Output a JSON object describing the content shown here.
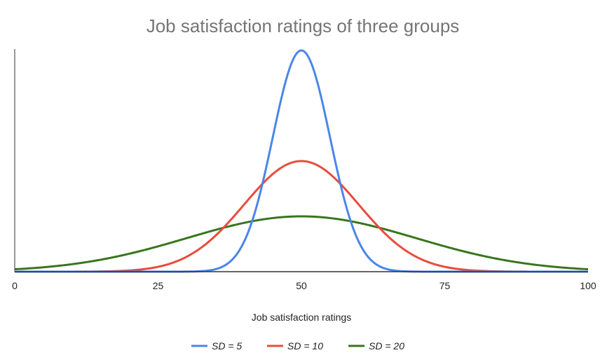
{
  "chart_data": {
    "type": "line",
    "title": "Job satisfaction ratings of three groups",
    "xlabel": "Job satisfaction ratings",
    "ylabel": "",
    "xlim": [
      0,
      100
    ],
    "x_ticks": [
      "0",
      "25",
      "50",
      "75",
      "100"
    ],
    "y_ticks": [],
    "grid": false,
    "legend_position": "bottom",
    "series": [
      {
        "name": "SD = 5",
        "color": "#4a86e8",
        "distribution": "normal",
        "mean": 50,
        "sd": 5
      },
      {
        "name": "SD = 10",
        "color": "#e84c3d",
        "distribution": "normal",
        "mean": 50,
        "sd": 10
      },
      {
        "name": "SD = 20",
        "color": "#38761d",
        "distribution": "normal",
        "mean": 50,
        "sd": 20
      }
    ]
  }
}
